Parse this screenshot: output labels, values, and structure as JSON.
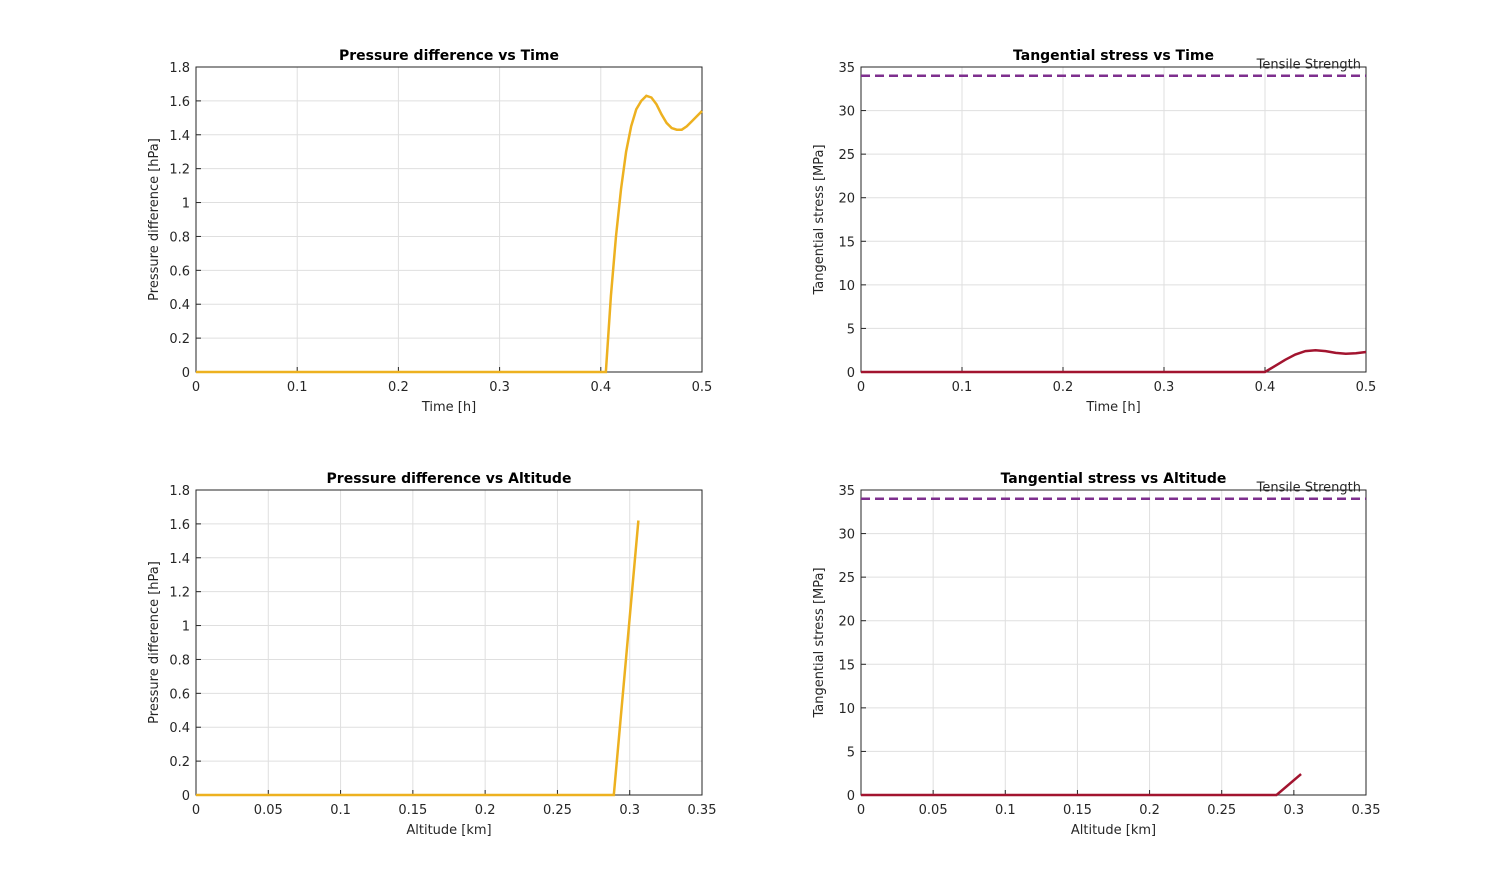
{
  "chart_data": [
    {
      "type": "line",
      "title": "Pressure difference vs Time",
      "xlabel": "Time [h]",
      "ylabel": "Pressure difference [hPa]",
      "x": [
        0,
        0.405,
        0.41,
        0.415,
        0.42,
        0.425,
        0.43,
        0.435,
        0.44,
        0.445,
        0.45,
        0.455,
        0.46,
        0.465,
        0.47,
        0.475,
        0.48,
        0.485,
        0.49,
        0.495,
        0.5
      ],
      "values": [
        0,
        0,
        0.45,
        0.8,
        1.08,
        1.3,
        1.45,
        1.55,
        1.6,
        1.63,
        1.62,
        1.58,
        1.52,
        1.47,
        1.44,
        1.43,
        1.43,
        1.45,
        1.48,
        1.51,
        1.54
      ],
      "color": "#EDB120",
      "xlim": [
        0,
        0.5
      ],
      "ylim": [
        0,
        1.8
      ],
      "xticks": [
        0,
        0.1,
        0.2,
        0.3,
        0.4,
        0.5
      ],
      "yticks": [
        0,
        0.2,
        0.4,
        0.6,
        0.8,
        1,
        1.2,
        1.4,
        1.6,
        1.8
      ],
      "grid": true
    },
    {
      "type": "line",
      "title": "Tangential stress vs Time",
      "xlabel": "Time [h]",
      "ylabel": "Tangential stress [MPa]",
      "x": [
        0,
        0.4,
        0.41,
        0.42,
        0.43,
        0.44,
        0.45,
        0.46,
        0.47,
        0.48,
        0.49,
        0.5
      ],
      "values": [
        0,
        0,
        0.7,
        1.4,
        2.0,
        2.4,
        2.5,
        2.4,
        2.2,
        2.1,
        2.15,
        2.3
      ],
      "color": "#A2142F",
      "xlim": [
        0,
        0.5
      ],
      "ylim": [
        0,
        35
      ],
      "xticks": [
        0,
        0.1,
        0.2,
        0.3,
        0.4,
        0.5
      ],
      "yticks": [
        0,
        5,
        10,
        15,
        20,
        25,
        30,
        35
      ],
      "grid": true,
      "reference_line": {
        "value": 34,
        "label": "Tensile Strength",
        "color": "#7E2F8E",
        "style": "dashed"
      }
    },
    {
      "type": "line",
      "title": "Pressure difference vs Altitude",
      "xlabel": "Altitude [km]",
      "ylabel": "Pressure difference [hPa]",
      "x": [
        0,
        0.289,
        0.306
      ],
      "values": [
        0,
        0,
        1.62
      ],
      "color": "#EDB120",
      "xlim": [
        0,
        0.35
      ],
      "ylim": [
        0,
        1.8
      ],
      "xticks": [
        0,
        0.05,
        0.1,
        0.15,
        0.2,
        0.25,
        0.3,
        0.35
      ],
      "yticks": [
        0,
        0.2,
        0.4,
        0.6,
        0.8,
        1,
        1.2,
        1.4,
        1.6,
        1.8
      ],
      "grid": true
    },
    {
      "type": "line",
      "title": "Tangential stress vs Altitude",
      "xlabel": "Altitude [km]",
      "ylabel": "Tangential stress [MPa]",
      "x": [
        0,
        0.288,
        0.305
      ],
      "values": [
        0,
        0,
        2.4
      ],
      "color": "#A2142F",
      "xlim": [
        0,
        0.35
      ],
      "ylim": [
        0,
        35
      ],
      "xticks": [
        0,
        0.05,
        0.1,
        0.15,
        0.2,
        0.25,
        0.3,
        0.35
      ],
      "yticks": [
        0,
        5,
        10,
        15,
        20,
        25,
        30,
        35
      ],
      "grid": true,
      "reference_line": {
        "value": 34,
        "label": "Tensile Strength",
        "color": "#7E2F8E",
        "style": "dashed"
      }
    }
  ]
}
